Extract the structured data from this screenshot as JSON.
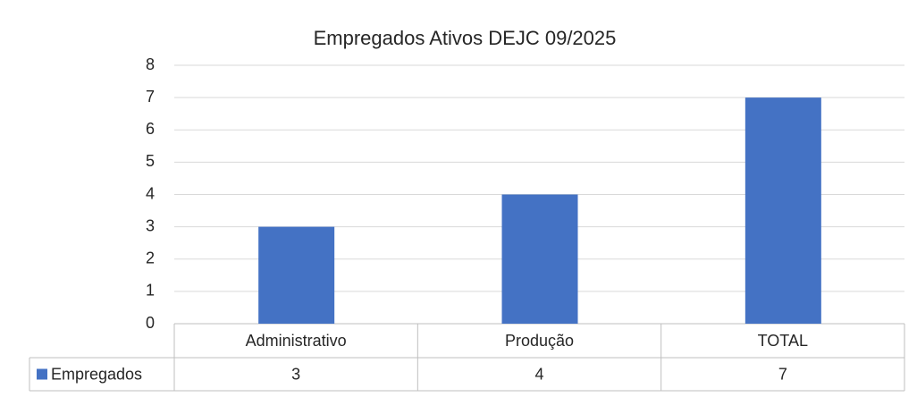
{
  "chart_data": {
    "type": "bar",
    "title": "Empregados Ativos DEJC 09/2025",
    "categories": [
      "Administrativo",
      "Produção",
      "TOTAL"
    ],
    "series": [
      {
        "name": "Empregados",
        "color": "#4472c4",
        "values": [
          3,
          4,
          7
        ]
      }
    ],
    "ylim": [
      0,
      8
    ],
    "yticks": [
      0,
      1,
      2,
      3,
      4,
      5,
      6,
      7,
      8
    ],
    "grid": true
  }
}
